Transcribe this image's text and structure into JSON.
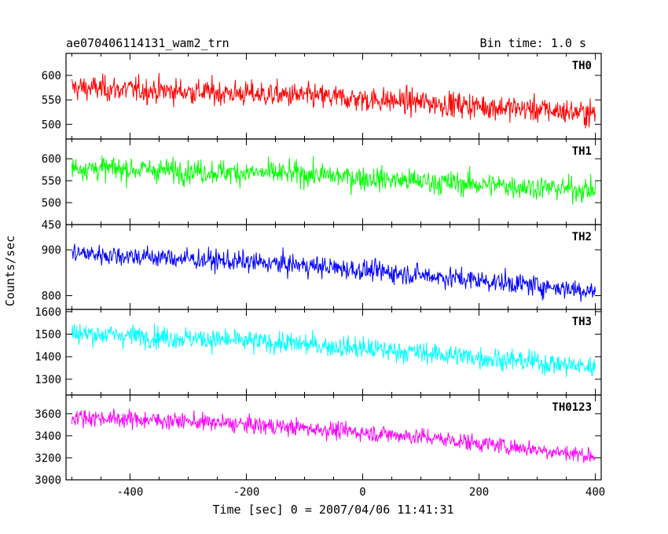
{
  "header": {
    "left": "ae070406114131_wam2_trn",
    "right": "Bin time: 1.0 s"
  },
  "chart_data": {
    "type": "line",
    "xlabel": "Time [sec] 0 = 2007/04/06 11:41:31",
    "ylabel": "Counts/sec",
    "xlim": [
      -510,
      410
    ],
    "x_ticks": [
      -400,
      -200,
      0,
      200,
      400
    ],
    "bin_time_s": 1.0,
    "grid": false,
    "panels": [
      {
        "name": "TH0",
        "color": "#ff0000",
        "ylim": [
          470,
          645
        ],
        "y_ticks": [
          500,
          550,
          600
        ],
        "trend": [
          [
            -500,
            575
          ],
          [
            -300,
            567
          ],
          [
            -100,
            558
          ],
          [
            100,
            545
          ],
          [
            300,
            530
          ],
          [
            400,
            522
          ]
        ],
        "noise_amplitude": 40
      },
      {
        "name": "TH1",
        "color": "#00ff00",
        "ylim": [
          450,
          645
        ],
        "y_ticks": [
          450,
          500,
          550,
          600
        ],
        "trend": [
          [
            -500,
            580
          ],
          [
            -300,
            572
          ],
          [
            -100,
            565
          ],
          [
            100,
            548
          ],
          [
            300,
            535
          ],
          [
            400,
            528
          ]
        ],
        "noise_amplitude": 42
      },
      {
        "name": "TH2",
        "color": "#0000ff",
        "ylim": [
          770,
          955
        ],
        "y_ticks": [
          800,
          900
        ],
        "trend": [
          [
            -500,
            893
          ],
          [
            -300,
            880
          ],
          [
            -100,
            866
          ],
          [
            100,
            845
          ],
          [
            300,
            822
          ],
          [
            400,
            810
          ]
        ],
        "noise_amplitude": 35
      },
      {
        "name": "TH3",
        "color": "#00ffff",
        "ylim": [
          1230,
          1610
        ],
        "y_ticks": [
          1300,
          1400,
          1500,
          1600
        ],
        "trend": [
          [
            -500,
            1505
          ],
          [
            -300,
            1482
          ],
          [
            -100,
            1455
          ],
          [
            100,
            1418
          ],
          [
            300,
            1375
          ],
          [
            400,
            1352
          ]
        ],
        "noise_amplitude": 75
      },
      {
        "name": "TH0123",
        "color": "#ff00ff",
        "ylim": [
          3000,
          3770
        ],
        "y_ticks": [
          3000,
          3200,
          3400,
          3600
        ],
        "trend": [
          [
            -500,
            3572
          ],
          [
            -300,
            3530
          ],
          [
            -100,
            3470
          ],
          [
            100,
            3390
          ],
          [
            300,
            3275
          ],
          [
            400,
            3215
          ]
        ],
        "noise_amplitude": 120
      }
    ]
  }
}
